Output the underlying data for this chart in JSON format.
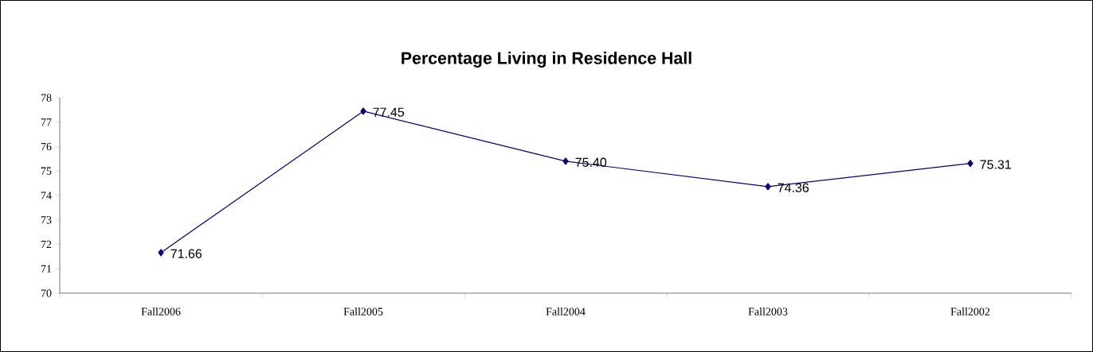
{
  "chart_data": {
    "type": "line",
    "title": "Percentage  Living in Residence Hall",
    "categories": [
      "Fall2006",
      "Fall2005",
      "Fall2004",
      "Fall2003",
      "Fall2002"
    ],
    "values": [
      71.66,
      77.45,
      75.4,
      74.36,
      75.31
    ],
    "value_labels": [
      "71.66",
      "77.45",
      "75.40",
      "74.36",
      "75.31"
    ],
    "color": "#000080",
    "marker": "diamond",
    "line_style": "solid",
    "ylim": [
      70,
      78
    ],
    "yticks": [
      70,
      71,
      72,
      73,
      74,
      75,
      76,
      77,
      78
    ]
  }
}
